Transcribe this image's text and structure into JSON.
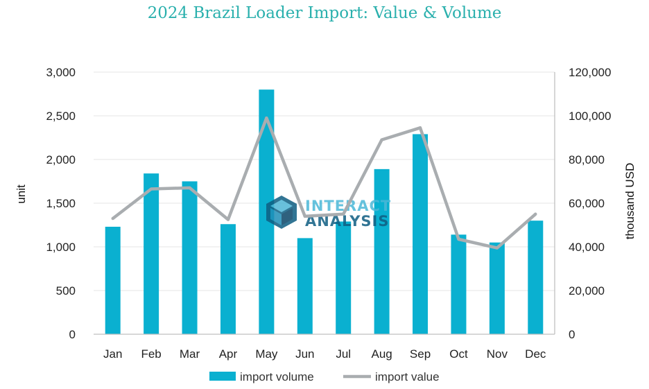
{
  "title": "2024 Brazil Loader Import: Value & Volume",
  "colors": {
    "title": "#2ab0ad",
    "bar": "#0ab0d0",
    "line": "#a9adb0",
    "grid": "#e4e4e4",
    "axis": "#bfbfbf"
  },
  "watermark": {
    "line1": "INTERACT",
    "line2": "ANALYSIS",
    "icon": "hexagon-cube-logo-icon"
  },
  "chart_data": {
    "type": "bar",
    "categories": [
      "Jan",
      "Feb",
      "Mar",
      "Apr",
      "May",
      "Jun",
      "Jul",
      "Aug",
      "Sep",
      "Oct",
      "Nov",
      "Dec"
    ],
    "series": [
      {
        "name": "import volume",
        "type": "bar",
        "axis": "left",
        "values": [
          1230,
          1840,
          1750,
          1260,
          2800,
          1100,
          1290,
          1890,
          2290,
          1140,
          1050,
          1300
        ]
      },
      {
        "name": "import value",
        "type": "line",
        "axis": "right",
        "values": [
          53000,
          66500,
          67000,
          52500,
          99000,
          54000,
          55000,
          89000,
          94500,
          43500,
          39500,
          55000
        ]
      }
    ],
    "ylabel": "unit",
    "y2label": "thousand USD",
    "ylim": [
      0,
      3000
    ],
    "y2lim": [
      0,
      120000
    ],
    "yticks": [
      "0",
      "500",
      "1,000",
      "1,500",
      "2,000",
      "2,500",
      "3,000"
    ],
    "y2ticks": [
      "0",
      "20,000",
      "40,000",
      "60,000",
      "80,000",
      "100,000",
      "120,000"
    ],
    "grid": true,
    "legend": "bottom"
  }
}
